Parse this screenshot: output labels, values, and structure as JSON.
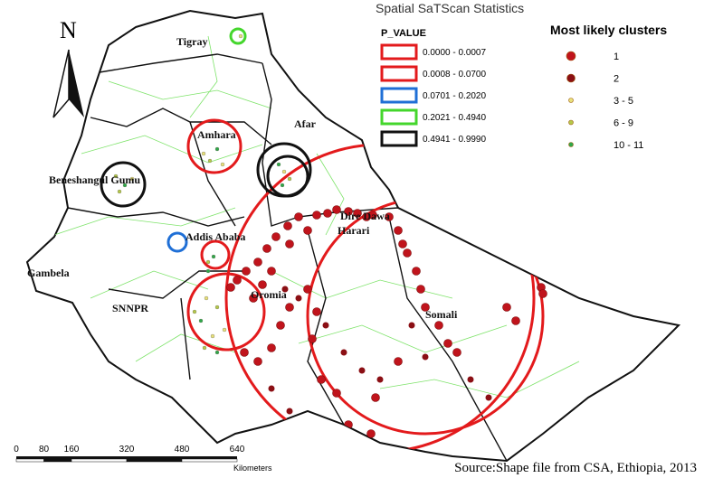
{
  "legend_title": "Spatial SaTScan Statistics",
  "p_value": {
    "title": "P_VALUE",
    "items": [
      {
        "label": "0.0000 - 0.0007",
        "color": "#e31a1c"
      },
      {
        "label": "0.0008 - 0.0700",
        "color": "#e31a1c"
      },
      {
        "label": "0.0701 - 0.2020",
        "color": "#1f6fd6"
      },
      {
        "label": "0.2021 - 0.4940",
        "color": "#44d62c"
      },
      {
        "label": "0.4941 - 0.9990",
        "color": "#111111"
      }
    ]
  },
  "clusters": {
    "title": "Most likely clusters",
    "items": [
      {
        "label": "1",
        "color": "#c0141c"
      },
      {
        "label": "2",
        "color": "#8b0f14"
      },
      {
        "label": "3 - 5",
        "color": "#e8e07a"
      },
      {
        "label": "6 - 9",
        "color": "#b5c94a"
      },
      {
        "label": "10 - 11",
        "color": "#2ea84a"
      }
    ]
  },
  "regions": [
    "Tigray",
    "Afar",
    "Amhara",
    "Beneshangul Gumu",
    "Addis Ababa",
    "Dire Dawa",
    "Harari",
    "Gambela",
    "Oromia",
    "SNNPR",
    "Somali"
  ],
  "north": "N",
  "scale_bar": {
    "ticks": [
      0,
      80,
      160,
      320,
      480,
      640
    ],
    "unit": "Kilometers"
  },
  "source": "Source:Shape file from CSA, Ethiopia, 2013"
}
